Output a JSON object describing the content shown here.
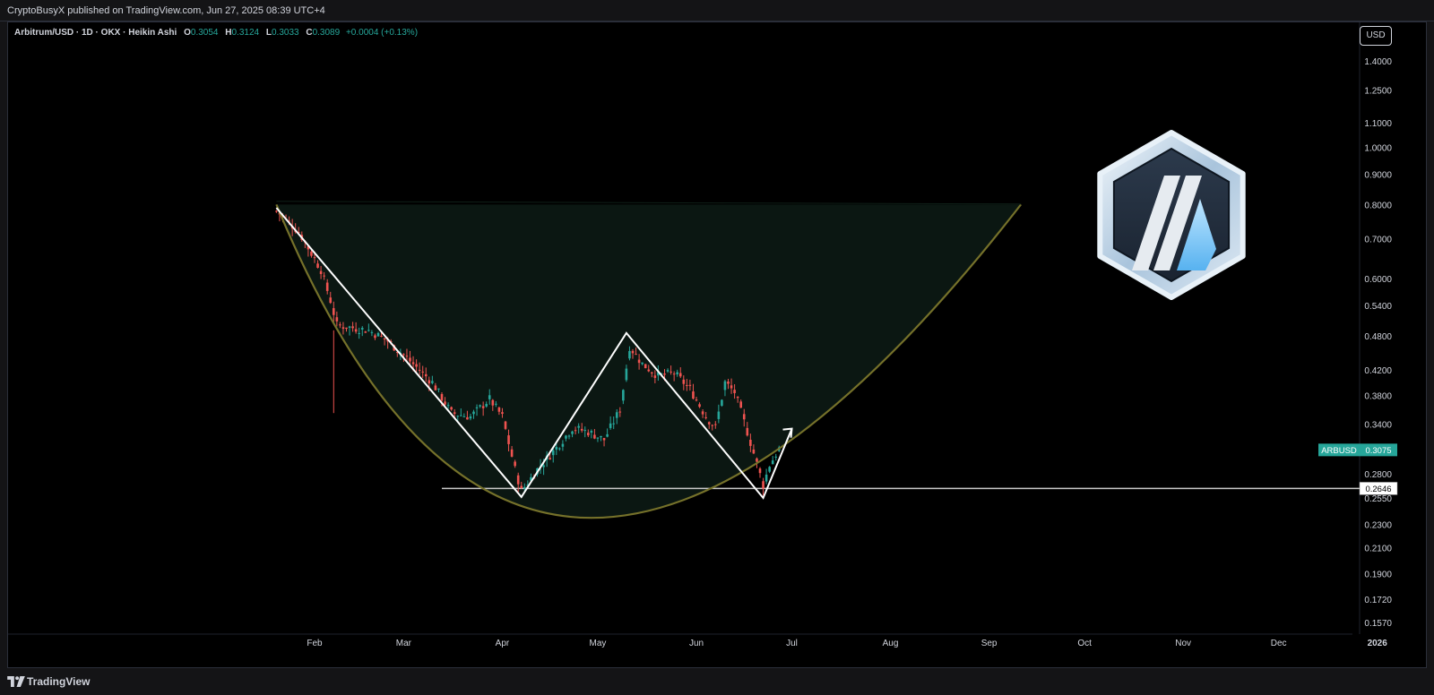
{
  "header": {
    "published": "CryptoBusyX published on TradingView.com, Jun 27, 2025 08:39 UTC+4"
  },
  "legend": {
    "symbol": "Arbitrum/USD · 1D · OKX · Heikin Ashi",
    "o_label": "O",
    "o_value": "0.3054",
    "h_label": "H",
    "h_value": "0.3124",
    "l_label": "L",
    "l_value": "0.3033",
    "c_label": "C",
    "c_value": "0.3089",
    "change": "+0.0004 (+0.13%)"
  },
  "currency_button": "USD",
  "footer": {
    "brand": "TradingView"
  },
  "icons": [
    "tradingview-logo-icon",
    "arbitrum-logo-icon",
    "arrow-up-icon"
  ],
  "colors": {
    "background": "#000000",
    "up_candle": "#26a69a",
    "down_candle": "#ef5350",
    "cup_curve": "#75712a",
    "cup_fill": "#0b1712",
    "pattern_lines": "#ffffff",
    "price_tag": "#26a69a"
  },
  "chart_data": {
    "type": "candlestick",
    "title": "",
    "symbol": "ARBUSD",
    "chart_style": "Heikin Ashi",
    "timeframe": "1D",
    "exchange": "OKX",
    "y_scale": "log",
    "ylim": [
      0.15,
      1.55
    ],
    "y_ticks": [
      "1.4000",
      "1.2500",
      "1.1000",
      "1.0000",
      "0.9000",
      "0.8000",
      "0.7000",
      "0.6000",
      "0.5400",
      "0.4800",
      "0.4200",
      "0.3800",
      "0.3400",
      "0.2800",
      "0.2550",
      "0.2300",
      "0.2100",
      "0.1900",
      "0.1720",
      "0.1570"
    ],
    "x_ticks": [
      "Feb",
      "Mar",
      "Apr",
      "May",
      "Jun",
      "Jul",
      "Aug",
      "Sep",
      "Oct",
      "Nov",
      "Dec",
      "2026"
    ],
    "x_range": [
      "2025-01-07",
      "2026-01-03"
    ],
    "last_price": {
      "label": "ARBUSD",
      "value": "0.3075"
    },
    "horizontal_line": {
      "value": "0.2646"
    },
    "key_prices": [
      {
        "date": "2025-01-20",
        "price": 0.8
      },
      {
        "date": "2025-04-07",
        "price": 0.258
      },
      {
        "date": "2025-05-10",
        "price": 0.485
      },
      {
        "date": "2025-06-22",
        "price": 0.255
      },
      {
        "date": "2025-06-27",
        "price": 0.3089
      }
    ],
    "annotations": [
      {
        "type": "cup_curve",
        "points": [
          [
            "2025-01-20",
            0.8
          ],
          [
            "2025-04-29",
            0.236
          ],
          [
            "2025-09-11",
            0.8
          ]
        ]
      },
      {
        "type": "rim_line",
        "price": 0.81
      },
      {
        "type": "w_pattern",
        "points": [
          [
            "2025-01-20",
            0.79
          ],
          [
            "2025-04-07",
            0.256
          ],
          [
            "2025-05-10",
            0.485
          ],
          [
            "2025-06-22",
            0.255
          ],
          [
            "2025-07-01",
            0.334
          ]
        ]
      }
    ]
  }
}
